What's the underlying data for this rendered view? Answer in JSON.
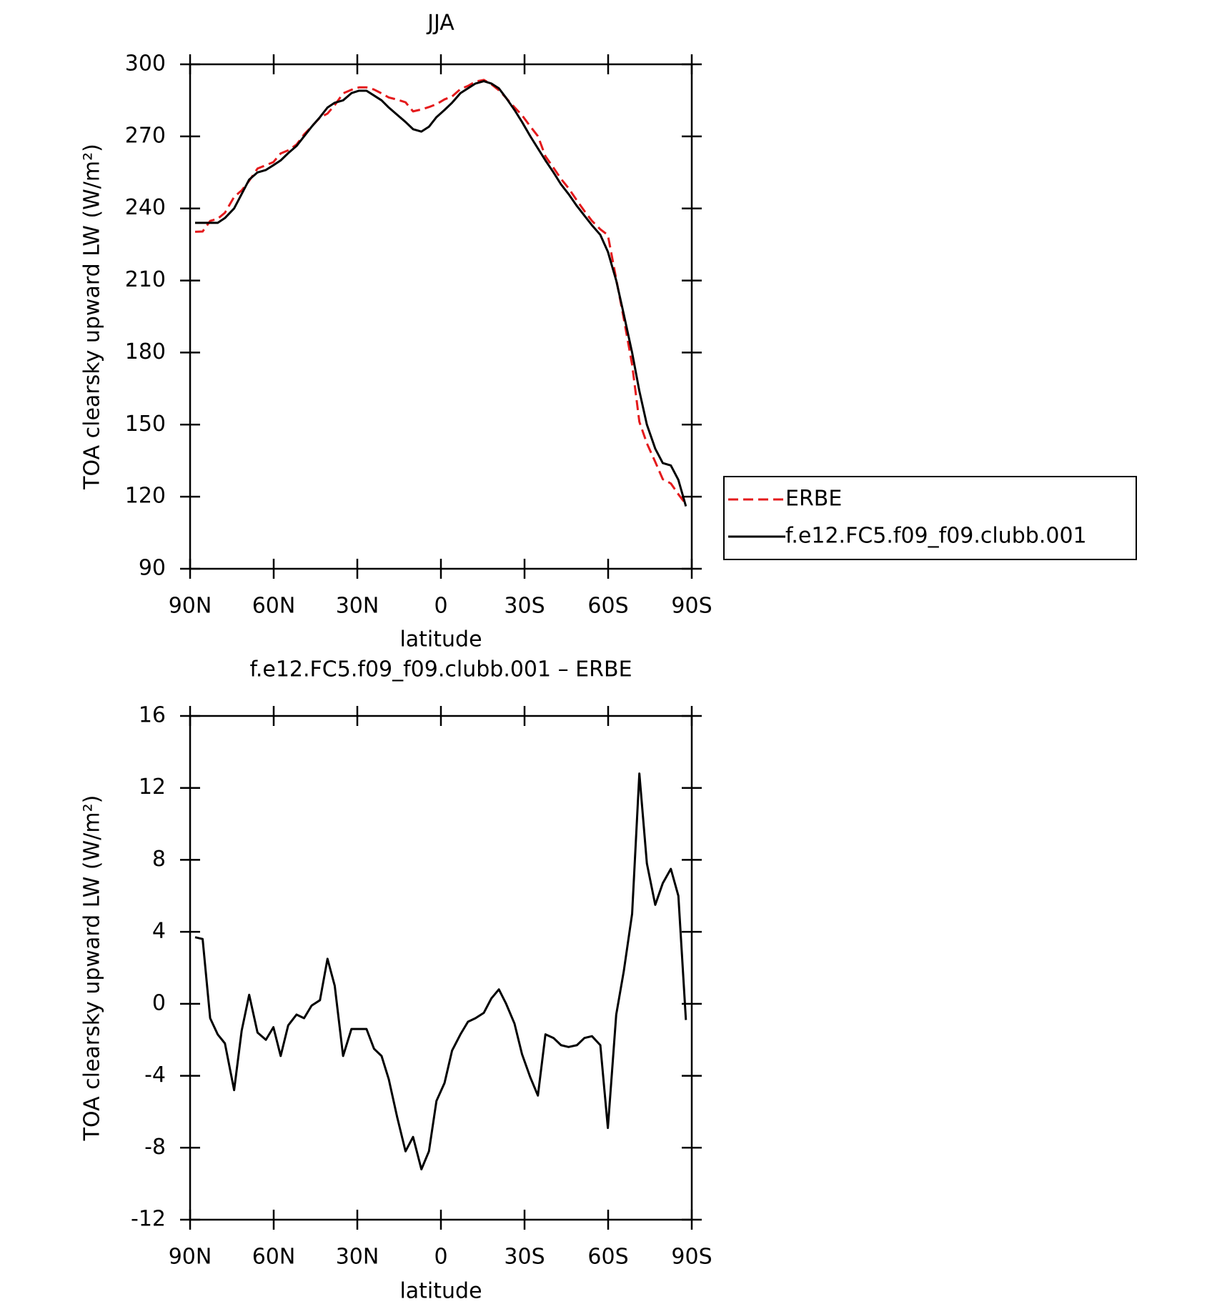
{
  "chart_data": [
    {
      "type": "line",
      "title": "JJA",
      "xlabel": "latitude",
      "ylabel": "TOA clearsky upward LW (W/m²)",
      "x": [
        88.2,
        85.5,
        82.8,
        80.1,
        77.5,
        74.2,
        71.5,
        68.8,
        65.8,
        62.8,
        60.1,
        57.5,
        54.8,
        51.8,
        49.1,
        46.4,
        43.4,
        40.7,
        38.1,
        35.1,
        32.1,
        29.4,
        26.7,
        24.0,
        21.3,
        18.7,
        15.7,
        12.7,
        10.0,
        7.0,
        4.3,
        1.6,
        -1.3,
        -4.0,
        -7.0,
        -9.7,
        -12.4,
        -15.4,
        -18.1,
        -20.8,
        -23.4,
        -26.4,
        -29.1,
        -32.1,
        -34.8,
        -37.5,
        -40.4,
        -43.1,
        -45.8,
        -48.8,
        -51.5,
        -54.2,
        -57.2,
        -59.9,
        -62.9,
        -65.6,
        -68.6,
        -71.2,
        -73.9,
        -76.9,
        -79.6,
        -82.5,
        -85.2,
        -87.9
      ],
      "series": [
        {
          "name": "ERBE",
          "color": "#e41a1c",
          "dashed": true,
          "values": [
            230.3,
            230.4,
            234.8,
            235.7,
            238.2,
            244.8,
            247.5,
            251.5,
            256.6,
            258,
            259.3,
            262.9,
            264.2,
            266.6,
            270.8,
            274.1,
            277.8,
            279.5,
            283,
            287.9,
            289.4,
            290.4,
            290.4,
            289.5,
            287.9,
            286.2,
            285.3,
            284.2,
            280.4,
            281.2,
            282.2,
            283.4,
            285.4,
            286.6,
            289.7,
            291,
            292.8,
            293.5,
            291.7,
            289.2,
            286,
            282.1,
            278.8,
            274.1,
            270.1,
            261.7,
            256.9,
            252.3,
            248.4,
            243.3,
            238.9,
            234.8,
            231.3,
            228.9,
            210.6,
            194.2,
            175,
            151.2,
            142.2,
            134.5,
            127.3,
            125.5,
            121,
            116.9
          ]
        },
        {
          "name": "f.e12.FC5.f09_f09.clubb.001",
          "color": "#000000",
          "dashed": false,
          "values": [
            234,
            234,
            234,
            234,
            236,
            240,
            246,
            252,
            255,
            256,
            258,
            260,
            263,
            266,
            270,
            274,
            278,
            282,
            284,
            285,
            288,
            289,
            289,
            287,
            285,
            282,
            279,
            276,
            273,
            272,
            274,
            278,
            281,
            284,
            288,
            290,
            292,
            293,
            292,
            290,
            286,
            281,
            276,
            270,
            265,
            260,
            255,
            250,
            246,
            241,
            237,
            233,
            229,
            222,
            210,
            196,
            180,
            164,
            150,
            140,
            134,
            133,
            127,
            116
          ]
        }
      ],
      "xlim": [
        90,
        -90
      ],
      "xticks": [
        {
          "value": 90,
          "label": "90N"
        },
        {
          "value": 60,
          "label": "60N"
        },
        {
          "value": 30,
          "label": "30N"
        },
        0,
        {
          "value": -30,
          "label": "30S"
        },
        {
          "value": -60,
          "label": "60S"
        },
        {
          "value": -90,
          "label": "90S"
        }
      ],
      "ylim": [
        90,
        300
      ],
      "yticks": [
        90,
        120,
        150,
        180,
        210,
        240,
        270,
        300
      ],
      "legend": "right"
    },
    {
      "type": "line",
      "title": "f.e12.FC5.f09_f09.clubb.001 – ERBE",
      "xlabel": "latitude",
      "ylabel": "TOA clearsky upward LW (W/m²)",
      "x": [
        88.2,
        85.5,
        82.8,
        80.1,
        77.5,
        74.2,
        71.5,
        68.8,
        65.8,
        62.8,
        60.1,
        57.5,
        54.8,
        51.8,
        49.1,
        46.4,
        43.4,
        40.7,
        38.1,
        35.1,
        32.1,
        29.4,
        26.7,
        24.0,
        21.3,
        18.7,
        15.7,
        12.7,
        10.0,
        7.0,
        4.3,
        1.6,
        -1.3,
        -4.0,
        -7.0,
        -9.7,
        -12.4,
        -15.4,
        -18.1,
        -20.8,
        -23.4,
        -26.4,
        -29.1,
        -32.1,
        -34.8,
        -37.5,
        -40.4,
        -43.1,
        -45.8,
        -48.8,
        -51.5,
        -54.2,
        -57.2,
        -59.9,
        -62.9,
        -65.6,
        -68.6,
        -71.2,
        -73.9,
        -76.9,
        -79.6,
        -82.5,
        -85.2,
        -87.9
      ],
      "series": [
        {
          "color": "#000000",
          "dashed": false,
          "values": [
            3.7,
            3.6,
            -0.8,
            -1.7,
            -2.2,
            -4.8,
            -1.5,
            0.5,
            -1.6,
            -2.0,
            -1.3,
            -2.9,
            -1.2,
            -0.6,
            -0.8,
            -0.1,
            0.2,
            2.5,
            1.0,
            -2.9,
            -1.4,
            -1.4,
            -1.4,
            -2.5,
            -2.9,
            -4.2,
            -6.3,
            -8.2,
            -7.4,
            -9.2,
            -8.2,
            -5.4,
            -4.4,
            -2.6,
            -1.7,
            -1.0,
            -0.8,
            -0.5,
            0.3,
            0.8,
            0.0,
            -1.1,
            -2.8,
            -4.1,
            -5.1,
            -1.7,
            -1.9,
            -2.3,
            -2.4,
            -2.3,
            -1.9,
            -1.8,
            -2.3,
            -6.9,
            -0.6,
            1.8,
            5.0,
            12.8,
            7.8,
            5.5,
            6.7,
            7.5,
            6.0,
            -0.9
          ]
        }
      ],
      "xlim": [
        90,
        -90
      ],
      "xticks": [
        {
          "value": 90,
          "label": "90N"
        },
        {
          "value": 60,
          "label": "60N"
        },
        {
          "value": 30,
          "label": "30N"
        },
        0,
        {
          "value": -30,
          "label": "30S"
        },
        {
          "value": -60,
          "label": "60S"
        },
        {
          "value": -90,
          "label": "90S"
        }
      ],
      "ylim": [
        -12,
        16
      ],
      "yticks": [
        -12,
        -8,
        -4,
        0,
        4,
        8,
        12,
        16
      ]
    }
  ]
}
